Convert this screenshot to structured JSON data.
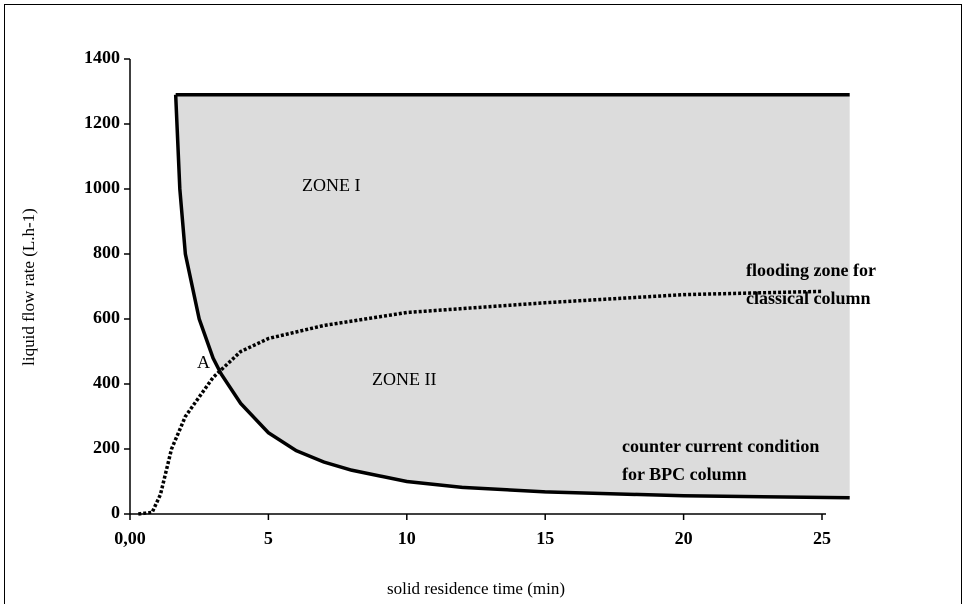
{
  "chart_data": {
    "type": "line",
    "xlabel": "solid residence time (min)",
    "ylabel": "liquid flow rate (L.h-1)",
    "xlim": [
      0,
      25
    ],
    "ylim": [
      0,
      1400
    ],
    "xticks": [
      {
        "value": 0,
        "label": "0,00"
      },
      5,
      10,
      15,
      20,
      25
    ],
    "yticks": [
      0,
      200,
      400,
      600,
      800,
      1000,
      1200,
      1400
    ],
    "series": [
      {
        "color": "#000000",
        "style": "solid",
        "x": [
          1.65,
          26
        ],
        "values": [
          1290,
          1290
        ]
      },
      {
        "color": "#000000",
        "style": "solid",
        "x": [
          1.65,
          1.8,
          2,
          2.5,
          3,
          3.3,
          4,
          5,
          6,
          7,
          8,
          10,
          12,
          15,
          20,
          26
        ],
        "values": [
          1290,
          1000,
          800,
          600,
          480,
          430,
          340,
          250,
          195,
          160,
          135,
          100,
          82,
          68,
          56,
          50
        ]
      },
      {
        "color": "#000000",
        "style": "dotted",
        "x": [
          0.3,
          0.8,
          1.1,
          1.5,
          2,
          2.5,
          3,
          4,
          5,
          7,
          10,
          15,
          20,
          25
        ],
        "values": [
          0,
          5,
          60,
          200,
          300,
          360,
          420,
          500,
          540,
          580,
          620,
          650,
          675,
          685
        ]
      }
    ],
    "annotations": [
      "ZONE I",
      "ZONE II",
      "A",
      "flooding zone for",
      "classical column",
      "counter current condition",
      "for BPC column"
    ]
  }
}
